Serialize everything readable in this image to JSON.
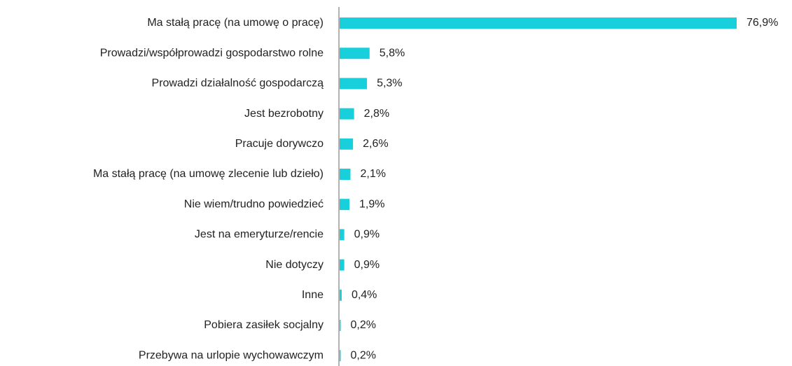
{
  "chart_data": {
    "type": "bar",
    "orientation": "horizontal",
    "color": "#17d0dc",
    "categories": [
      "Ma stałą pracę (na umowę o pracę)",
      "Prowadzi/współprowadzi gospodarstwo rolne",
      "Prowadzi działalność gospodarczą",
      "Jest bezrobotny",
      "Pracuje dorywczo",
      "Ma stałą pracę (na umowę zlecenie lub dzieło)",
      "Nie wiem/trudno powiedzieć",
      "Jest na emeryturze/rencie",
      "Nie dotyczy",
      "Inne",
      "Pobiera zasiłek socjalny",
      "Przebywa na urlopie wychowawczym"
    ],
    "values": [
      76.9,
      5.8,
      5.3,
      2.8,
      2.6,
      2.1,
      1.9,
      0.9,
      0.9,
      0.4,
      0.2,
      0.2
    ],
    "value_labels": [
      "76,9%",
      "5,8%",
      "5,3%",
      "2,8%",
      "2,6%",
      "2,1%",
      "1,9%",
      "0,9%",
      "0,9%",
      "0,4%",
      "0,2%",
      "0,2%"
    ]
  }
}
